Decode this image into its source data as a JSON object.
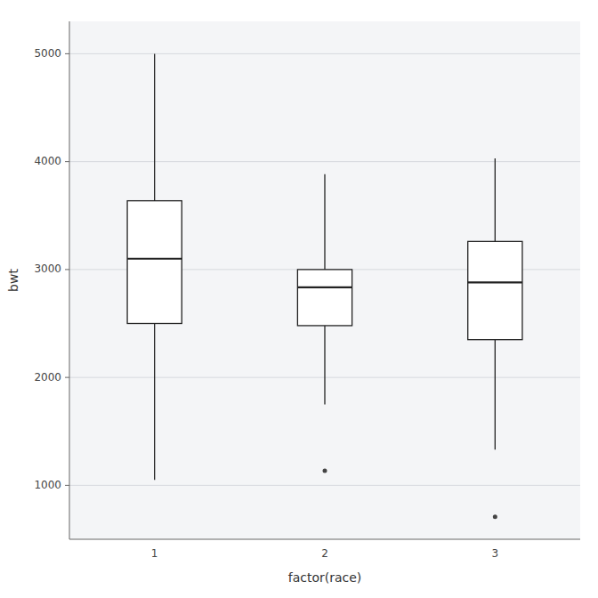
{
  "chart_data": {
    "type": "box",
    "xlabel": "factor(race)",
    "ylabel": "bwt",
    "categories": [
      "1",
      "2",
      "3"
    ],
    "boxes": [
      {
        "q1": 2500,
        "median": 3100,
        "q3": 3637,
        "whisker_low": 1050,
        "whisker_high": 5000,
        "outliers": []
      },
      {
        "q1": 2480,
        "median": 2835,
        "q3": 3000,
        "whisker_low": 1750,
        "whisker_high": 3884,
        "outliers": [
          1135
        ]
      },
      {
        "q1": 2350,
        "median": 2880,
        "q3": 3260,
        "whisker_low": 1330,
        "whisker_high": 4030,
        "outliers": [
          709
        ]
      }
    ],
    "color": "white",
    "ylim": [
      500,
      5300
    ],
    "yticks": [
      1000,
      2000,
      3000,
      4000,
      5000
    ],
    "grid": true
  }
}
